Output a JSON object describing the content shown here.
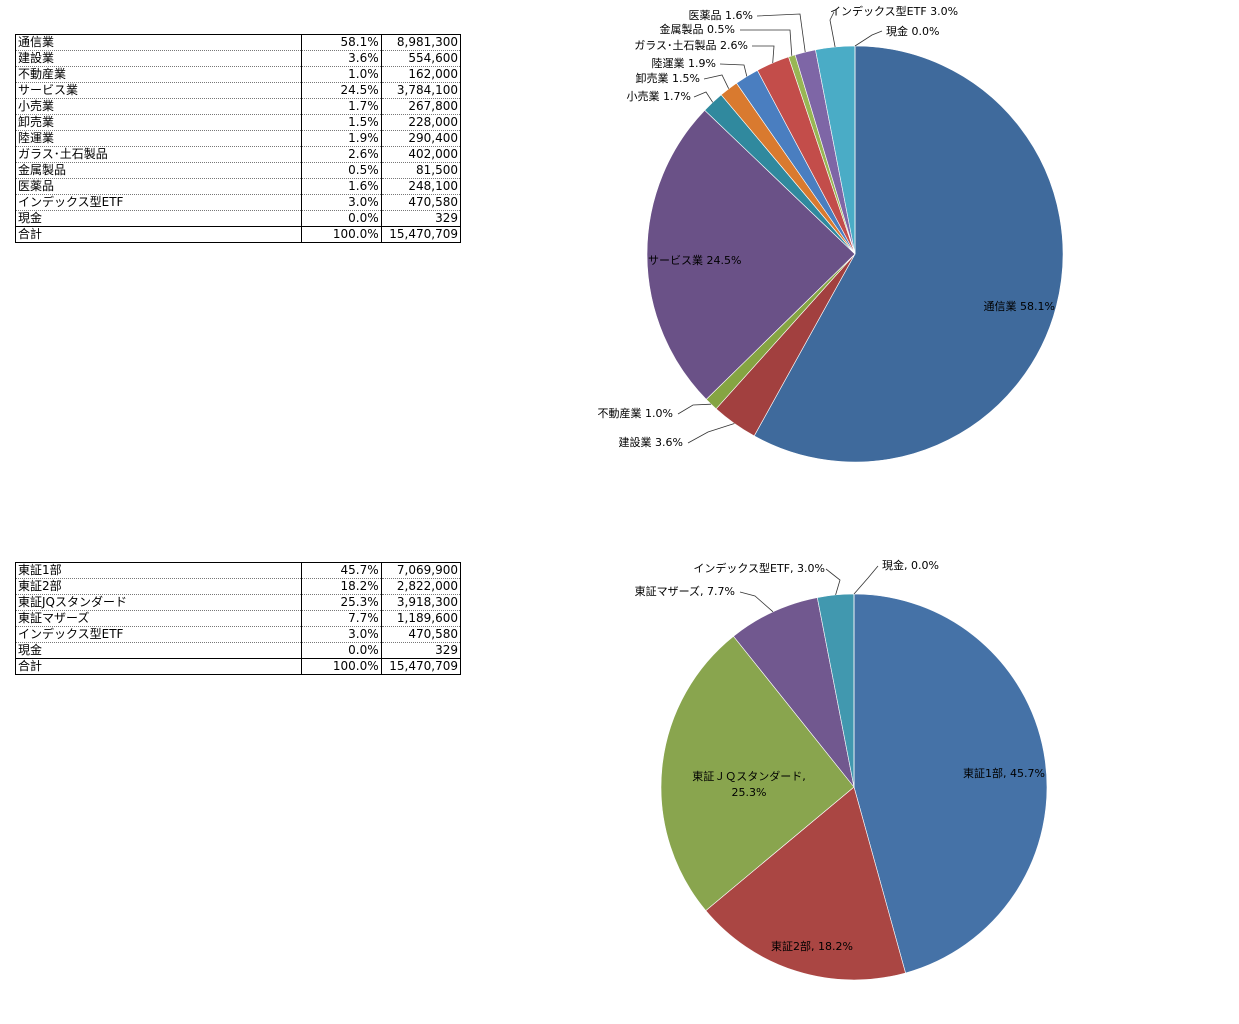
{
  "table1": {
    "rows": [
      {
        "name": "通信業",
        "pct": "58.1%",
        "amount": "8,981,300"
      },
      {
        "name": "建設業",
        "pct": "3.6%",
        "amount": "554,600"
      },
      {
        "name": "不動産業",
        "pct": "1.0%",
        "amount": "162,000"
      },
      {
        "name": "サービス業",
        "pct": "24.5%",
        "amount": "3,784,100"
      },
      {
        "name": "小売業",
        "pct": "1.7%",
        "amount": "267,800"
      },
      {
        "name": "卸売業",
        "pct": "1.5%",
        "amount": "228,000"
      },
      {
        "name": "陸運業",
        "pct": "1.9%",
        "amount": "290,400"
      },
      {
        "name": "ガラス･土石製品",
        "pct": "2.6%",
        "amount": "402,000"
      },
      {
        "name": "金属製品",
        "pct": "0.5%",
        "amount": "81,500"
      },
      {
        "name": "医薬品",
        "pct": "1.6%",
        "amount": "248,100"
      },
      {
        "name": "インデックス型ETF",
        "pct": "3.0%",
        "amount": "470,580"
      },
      {
        "name": "現金",
        "pct": "0.0%",
        "amount": "329"
      }
    ],
    "total": {
      "name": "合計",
      "pct": "100.0%",
      "amount": "15,470,709"
    }
  },
  "table2": {
    "rows": [
      {
        "name": "東証1部",
        "pct": "45.7%",
        "amount": "7,069,900"
      },
      {
        "name": "東証2部",
        "pct": "18.2%",
        "amount": "2,822,000"
      },
      {
        "name": "東証JQスタンダード",
        "pct": "25.3%",
        "amount": "3,918,300"
      },
      {
        "name": "東証マザーズ",
        "pct": "7.7%",
        "amount": "1,189,600"
      },
      {
        "name": "インデックス型ETF",
        "pct": "3.0%",
        "amount": "470,580"
      },
      {
        "name": "現金",
        "pct": "0.0%",
        "amount": "329"
      }
    ],
    "total": {
      "name": "合計",
      "pct": "100.0%",
      "amount": "15,470,709"
    }
  },
  "chart_data": [
    {
      "type": "pie",
      "title": "",
      "categories": [
        "通信業",
        "建設業",
        "不動産業",
        "サービス業",
        "小売業",
        "卸売業",
        "陸運業",
        "ガラス･土石製品",
        "金属製品",
        "医薬品",
        "インデックス型ETF",
        "現金"
      ],
      "values": [
        8981300,
        554600,
        162000,
        3784100,
        267800,
        228000,
        290400,
        402000,
        81500,
        248100,
        470580,
        329
      ],
      "labels": [
        "通信業 58.1%",
        "建設業 3.6%",
        "不動産業 1.0%",
        "サービス業 24.5%",
        "小売業 1.7%",
        "卸売業 1.5%",
        "陸運業 1.9%",
        "ガラス･土石製品 2.6%",
        "金属製品 0.5%",
        "医薬品 1.6%",
        "インデックス型ETF 3.0%",
        "現金 0.0%"
      ],
      "colors": [
        "#3f6a9c",
        "#a2403f",
        "#85a442",
        "#6a5187",
        "#30899e",
        "#d97a2f",
        "#4a7ec0",
        "#c34d4a",
        "#98b654",
        "#7e66a6",
        "#4aacc6",
        "#f79646"
      ],
      "start_angle_deg": 0,
      "direction": "clockwise",
      "legend": "none"
    },
    {
      "type": "pie",
      "title": "",
      "categories": [
        "東証1部",
        "東証2部",
        "東証ＪＱスタンダード",
        "東証マザーズ",
        "インデックス型ETF",
        "現金"
      ],
      "values": [
        7069900,
        2822000,
        3918300,
        1189600,
        470580,
        329
      ],
      "labels": [
        "東証1部, 45.7%",
        "東証2部, 18.2%",
        "東証ＪＱスタンダード, 25.3%",
        "東証マザーズ, 7.7%",
        "インデックス型ETF, 3.0%",
        "現金, 0.0%"
      ],
      "colors": [
        "#4572a7",
        "#aa4643",
        "#89a54e",
        "#71588f",
        "#4198af",
        "#db843d"
      ],
      "start_angle_deg": 0,
      "direction": "clockwise",
      "legend": "none"
    }
  ]
}
